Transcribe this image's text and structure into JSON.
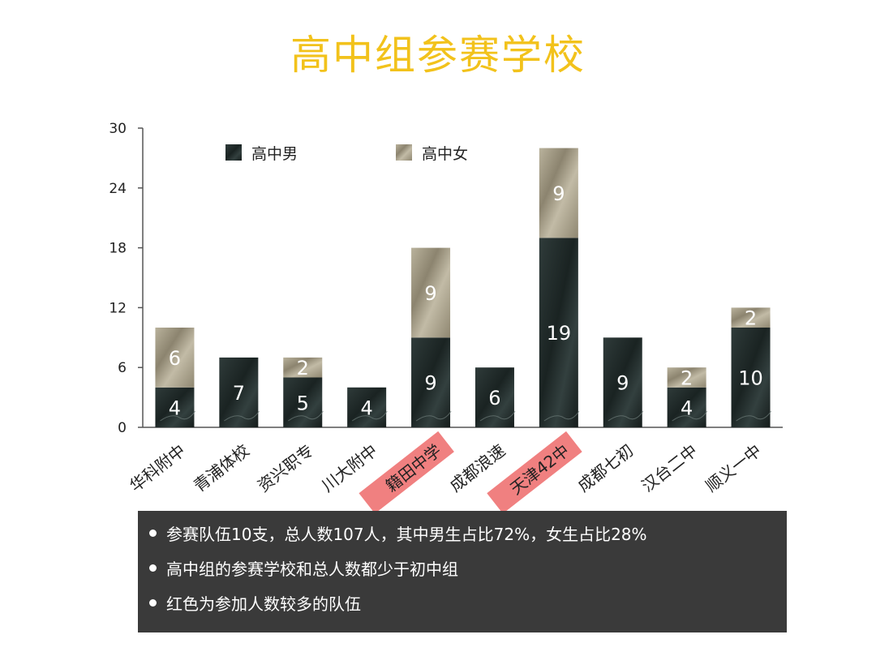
{
  "title": "高中组参赛学校",
  "colors": {
    "title": "#F2C21B",
    "male": "#1f2a29",
    "female": "#a59d87",
    "highlight": "#f08080",
    "notes_bg": "#3a3a3a"
  },
  "chart_data": {
    "type": "bar",
    "stacked": true,
    "categories": [
      "华科附中",
      "青浦体校",
      "资兴职专",
      "川大附中",
      "籍田中学",
      "成都浪速",
      "天津42中",
      "成都七初",
      "汉台二中",
      "顺义一中"
    ],
    "highlighted": [
      "籍田中学",
      "天津42中"
    ],
    "series": [
      {
        "name": "高中男",
        "values": [
          4,
          7,
          5,
          4,
          9,
          6,
          19,
          9,
          4,
          10
        ]
      },
      {
        "name": "高中女",
        "values": [
          6,
          0,
          2,
          0,
          9,
          0,
          9,
          0,
          2,
          2
        ]
      }
    ],
    "ylim": [
      0,
      30
    ],
    "yticks": [
      0,
      6,
      12,
      18,
      24,
      30
    ],
    "xlabel": "",
    "ylabel": "",
    "grid": false,
    "legend_position": "top"
  },
  "notes": [
    "参赛队伍10支，总人数107人，其中男生占比72%，女生占比28%",
    "高中组的参赛学校和总人数都少于初中组",
    "红色为参加人数较多的队伍"
  ]
}
